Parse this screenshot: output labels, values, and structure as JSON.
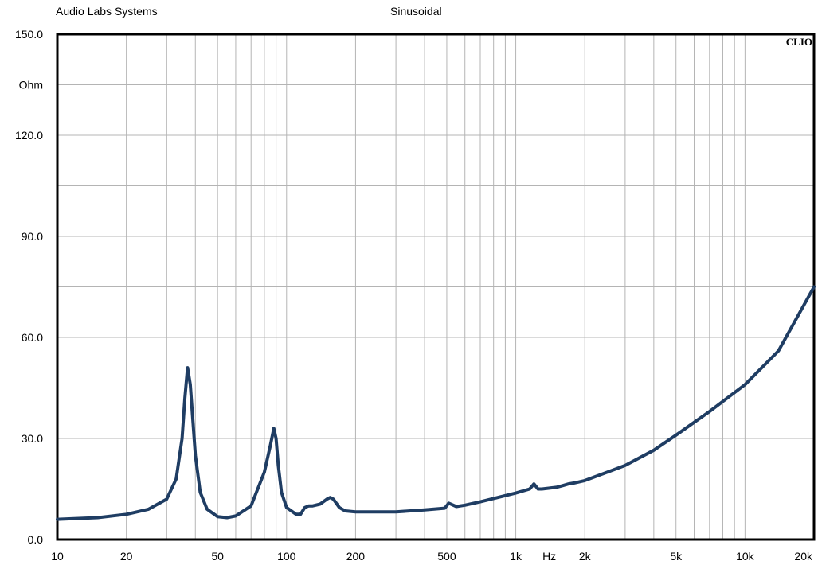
{
  "header": {
    "left": "Audio Labs Systems",
    "center": "Sinusoidal"
  },
  "colors": {
    "curve": "#1f3d63",
    "grid": "#b4b4b4",
    "frame": "#000000"
  },
  "chart_data": {
    "type": "line",
    "brand": "CLIO",
    "x_scale": "log",
    "xlim": [
      10,
      20000
    ],
    "ylim": [
      0,
      150
    ],
    "y_unit_label": "Ohm",
    "x_unit_label": "Hz",
    "grid": true,
    "x_ticks": [
      {
        "value": 10,
        "label": "10"
      },
      {
        "value": 20,
        "label": "20"
      },
      {
        "value": 50,
        "label": "50"
      },
      {
        "value": 100,
        "label": "100"
      },
      {
        "value": 200,
        "label": "200"
      },
      {
        "value": 500,
        "label": "500"
      },
      {
        "value": 1000,
        "label": "1k"
      },
      {
        "value": 2000,
        "label": "2k"
      },
      {
        "value": 5000,
        "label": "5k"
      },
      {
        "value": 10000,
        "label": "10k"
      },
      {
        "value": 20000,
        "label": "20k"
      }
    ],
    "y_ticks": [
      {
        "value": 0,
        "label": "0.0"
      },
      {
        "value": 30,
        "label": "30.0"
      },
      {
        "value": 60,
        "label": "60.0"
      },
      {
        "value": 90,
        "label": "90.0"
      },
      {
        "value": 120,
        "label": "120.0"
      },
      {
        "value": 150,
        "label": "150.0"
      }
    ],
    "series": [
      {
        "x": [
          10,
          15,
          20,
          25,
          30,
          33,
          35,
          36,
          37,
          38,
          40,
          42,
          45,
          50,
          55,
          60,
          70,
          80,
          85,
          88,
          90,
          92,
          95,
          100,
          110,
          115,
          120,
          125,
          130,
          140,
          150,
          155,
          160,
          170,
          180,
          200,
          300,
          400,
          490,
          510,
          550,
          600,
          700,
          800,
          1000,
          1150,
          1200,
          1250,
          1300,
          1500,
          1600,
          1700,
          1800,
          2000,
          3000,
          4000,
          5000,
          7000,
          10000,
          14000,
          20000
        ],
        "y": [
          6,
          6.5,
          7.5,
          9,
          12,
          18,
          30,
          42,
          51,
          46,
          25,
          14,
          9,
          6.8,
          6.5,
          7,
          10,
          20,
          28,
          33,
          30,
          22,
          14,
          9.5,
          7.5,
          7.5,
          9.5,
          10,
          10,
          10.5,
          12,
          12.5,
          12,
          9.5,
          8.5,
          8.2,
          8.2,
          8.8,
          9.3,
          10.8,
          9.8,
          10.2,
          11.2,
          12.2,
          13.8,
          15,
          16.5,
          15,
          15,
          15.5,
          16,
          16.5,
          16.8,
          17.5,
          22,
          26.5,
          31,
          38,
          46,
          56,
          75
        ]
      }
    ]
  }
}
